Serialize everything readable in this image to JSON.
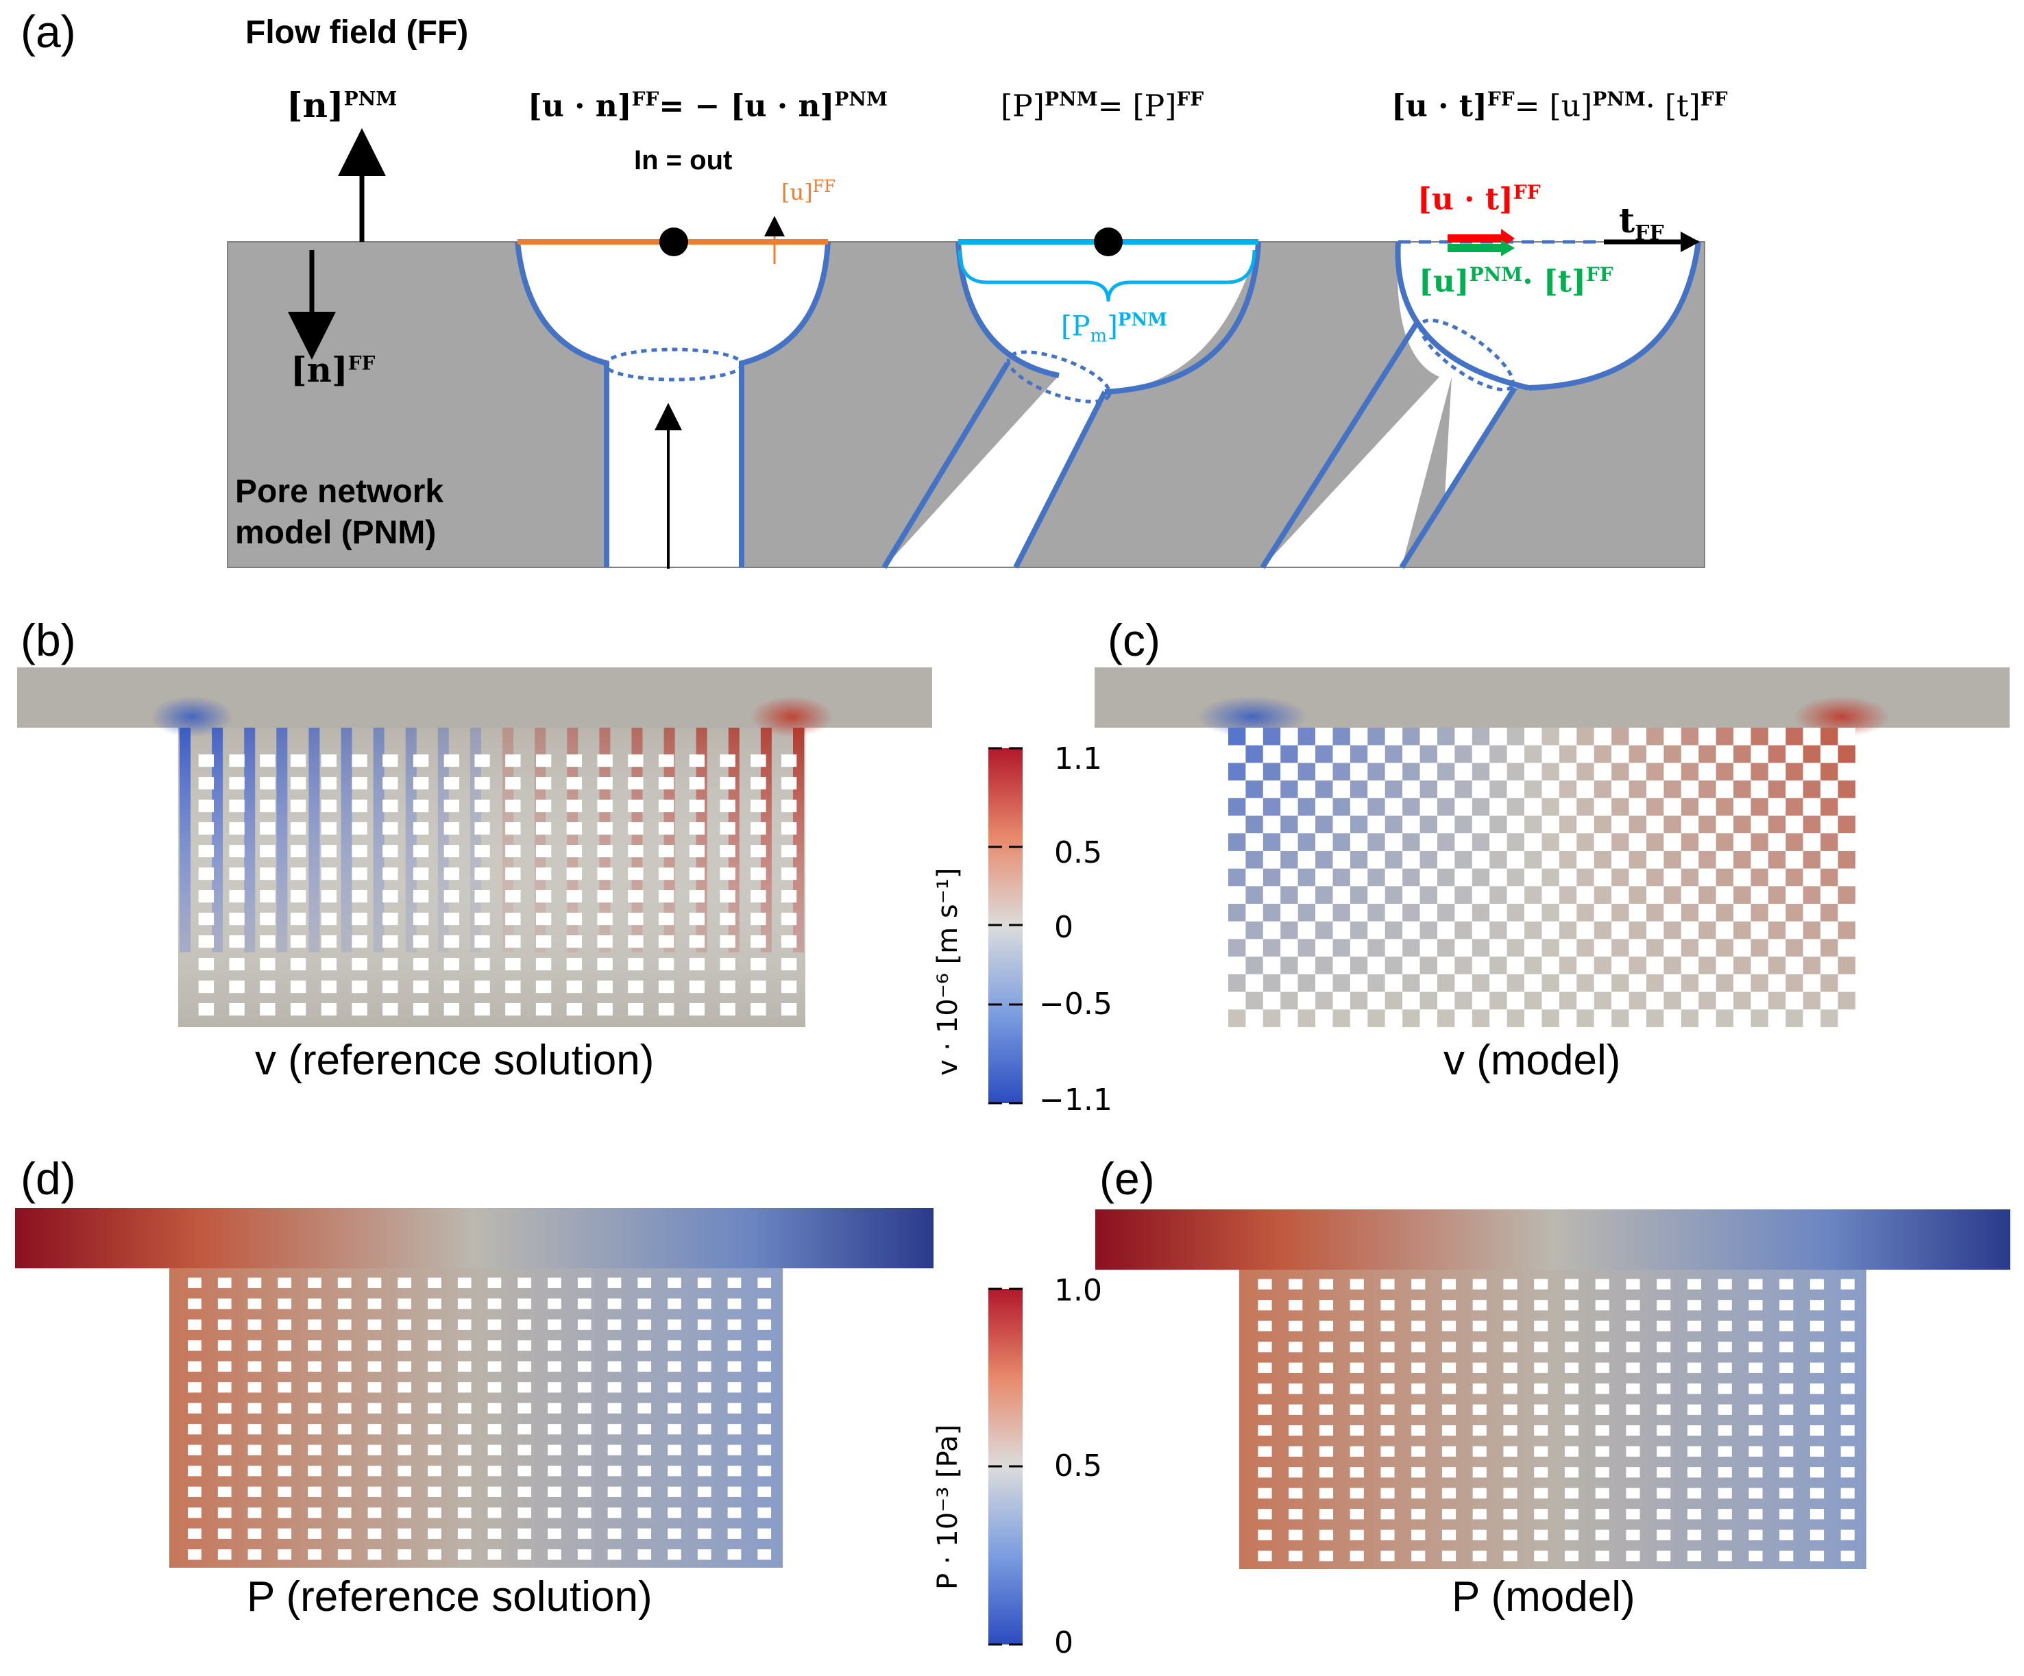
{
  "panels": {
    "a": {
      "letter": "(a)",
      "ff_title": "Flow field (FF)",
      "pnm_title_line1": "Pore network",
      "pnm_title_line2": "model (PNM)",
      "n_pnm": "[n]",
      "n_pnm_sup": "PNM",
      "n_ff": "[n]",
      "n_ff_sup": "FF",
      "eq1_left": "[u · n]",
      "eq1_left_sup": "FF",
      "eq1_right": "= − [u · n]",
      "eq1_right_sup": "PNM",
      "in_out": "In = out",
      "u_ff": "[u]",
      "u_ff_sup": "FF",
      "eq2_left": "[P]",
      "eq2_left_sup": "PNM",
      "eq2_right": "= [P]",
      "eq2_right_sup": "FF",
      "pm_pnm": "[P",
      "pm_sub": "m",
      "pm_close": "]",
      "pm_sup": "PNM",
      "eq3_left": "[u · t]",
      "eq3_left_sup": "FF",
      "eq3_mid": "= [u]",
      "eq3_mid_sup": "PNM",
      "eq3_right": "· [t]",
      "eq3_right_sup": "FF",
      "ut_red": "[u · t]",
      "ut_red_sup": "FF",
      "t_ff": "t",
      "t_ff_sub": "FF",
      "u_green": "[u]",
      "u_green_sup": "PNM",
      "t_green": "· [t]",
      "t_green_sup": "FF"
    },
    "b": {
      "letter": "(b)",
      "caption": "v (reference solution)"
    },
    "c": {
      "letter": "(c)",
      "caption": "v (model)"
    },
    "d": {
      "letter": "(d)",
      "caption": "P (reference solution)"
    },
    "e": {
      "letter": "(e)",
      "caption": "P (model)"
    }
  },
  "colorbar_v": {
    "label": "v · 10⁻⁶  [m s⁻¹]",
    "ticks": [
      "1.1",
      "0.5",
      "0",
      "−0.5",
      "−1.1"
    ]
  },
  "colorbar_p": {
    "label": "P · 10⁻³  [Pa]",
    "ticks": [
      "1.0",
      "0.5",
      "0"
    ]
  },
  "colors": {
    "solid_gray": "#a6a6a6",
    "pore_outline": "#4472c4",
    "orange": "#ed7d31",
    "cyan": "#00b0f0",
    "red": "#ff0000",
    "green": "#00b050",
    "cmap_high": "#b2182b",
    "cmap_mid": "#bcb8b0",
    "cmap_low": "#2c3e94"
  }
}
